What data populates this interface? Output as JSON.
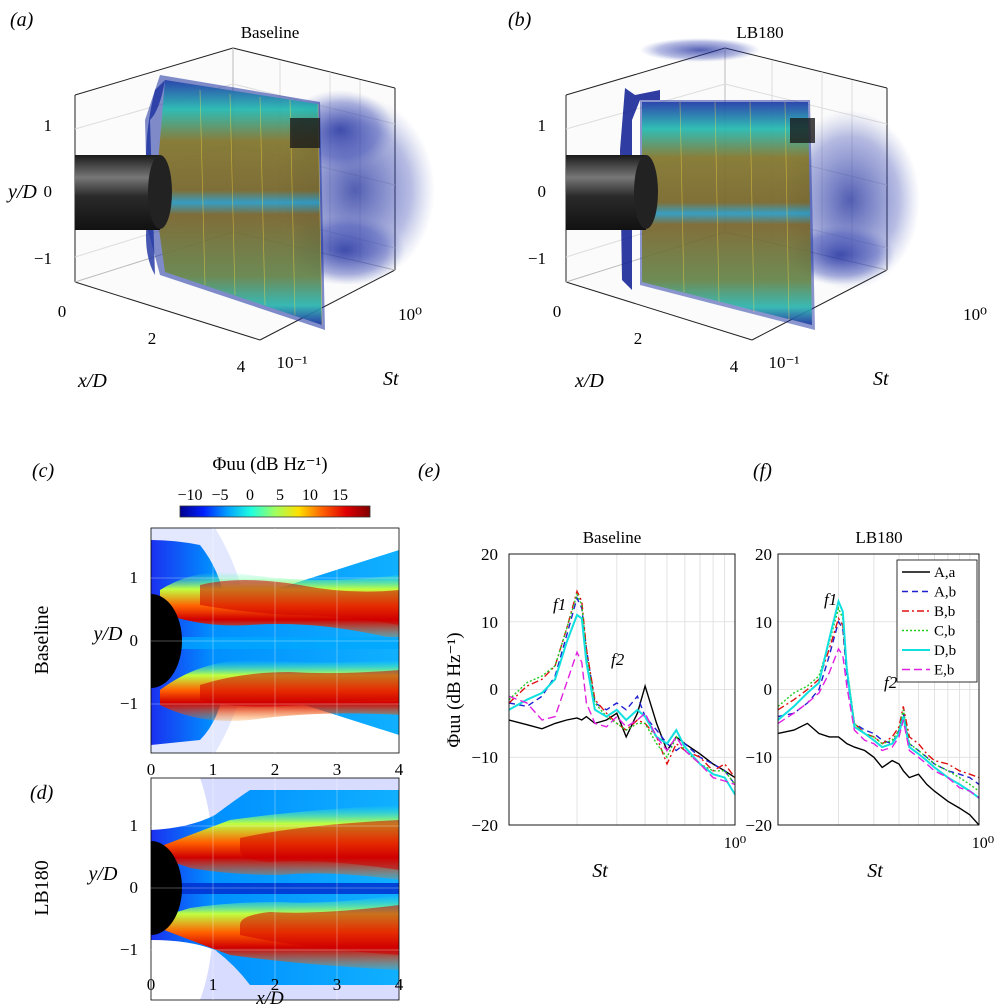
{
  "panels": {
    "a": {
      "label": "(a)",
      "title": "Baseline"
    },
    "b": {
      "label": "(b)",
      "title": "LB180"
    },
    "c": {
      "label": "(c)",
      "row_title": "Baseline"
    },
    "d": {
      "label": "(d)",
      "row_title": "LB180"
    },
    "e": {
      "label": "(e)",
      "title": "Baseline"
    },
    "f": {
      "label": "(f)",
      "title": "LB180"
    }
  },
  "axes3d": {
    "ylabel": "y/D",
    "xlabel": "x/D",
    "zlabel": "St",
    "yticks": [
      "1",
      "0",
      "−1"
    ],
    "xticks": [
      "0",
      "2",
      "4"
    ],
    "zticks": [
      "10⁻¹",
      "10⁰"
    ]
  },
  "colorbar": {
    "label": "Φuu (dB Hz⁻¹)",
    "ticks": [
      "−10",
      "−5",
      "0",
      "5",
      "10",
      "15"
    ],
    "range": [
      -10,
      15
    ],
    "colors": [
      "#00008f",
      "#0020ff",
      "#00a0ff",
      "#20ffdf",
      "#9fff60",
      "#ffdf00",
      "#ff6000",
      "#df0000",
      "#800000"
    ]
  },
  "contour": {
    "xlabel": "x/D",
    "ylabel": "y/D",
    "xticks": [
      "0",
      "1",
      "2",
      "3",
      "4"
    ],
    "yticks": [
      "1",
      "0",
      "−1"
    ]
  },
  "spectra": {
    "xlabel": "St",
    "ylabel": "Φuu (dB Hz⁻¹)",
    "yticks": [
      "20",
      "10",
      "0",
      "−10",
      "−20"
    ],
    "xtick": "10⁰",
    "f1": "f1",
    "f2": "f2"
  },
  "legend": [
    {
      "name": "A,a",
      "color": "#000000",
      "dash": ""
    },
    {
      "name": "A,b",
      "color": "#1f1fd0",
      "dash": "6,4"
    },
    {
      "name": "B,b",
      "color": "#e01010",
      "dash": "7,3,2,3"
    },
    {
      "name": "C,b",
      "color": "#20cc20",
      "dash": "2,2"
    },
    {
      "name": "D,b",
      "color": "#10e0e0",
      "dash": ""
    },
    {
      "name": "E,b",
      "color": "#e020e0",
      "dash": "8,4"
    }
  ],
  "chart_data": [
    {
      "type": "line",
      "panel": "e",
      "title": "Baseline",
      "xlabel": "St",
      "ylabel": "Φuu (dB Hz⁻¹)",
      "xscale": "log",
      "xlim": [
        0.1,
        1.0
      ],
      "ylim": [
        -20,
        20
      ],
      "x": [
        0.1,
        0.12,
        0.14,
        0.16,
        0.18,
        0.2,
        0.21,
        0.22,
        0.24,
        0.27,
        0.3,
        0.33,
        0.37,
        0.4,
        0.45,
        0.5,
        0.55,
        0.6,
        0.7,
        0.8,
        0.9,
        1.0
      ],
      "series": [
        {
          "name": "A,a",
          "values": [
            -4.5,
            -5.2,
            -5.8,
            -5.0,
            -4.5,
            -4.2,
            -4.5,
            -4.0,
            -5.0,
            -4.5,
            -3.5,
            -7.0,
            -3.5,
            0.5,
            -5.0,
            -9.0,
            -7.0,
            -8.0,
            -9.5,
            -11.0,
            -12.0,
            -13.0
          ]
        },
        {
          "name": "A,b",
          "values": [
            -2.0,
            -2.5,
            -1.0,
            2.0,
            8.0,
            13.5,
            12.0,
            6.0,
            -2.0,
            -3.0,
            -2.0,
            -3.0,
            -1.0,
            -4.0,
            -6.0,
            -8.0,
            -9.0,
            -8.0,
            -10.0,
            -11.0,
            -12.0,
            -14.0
          ]
        },
        {
          "name": "B,b",
          "values": [
            -2.0,
            0.5,
            1.5,
            3.5,
            9.0,
            14.5,
            13.0,
            6.0,
            -1.5,
            -3.5,
            -5.0,
            -6.0,
            -4.5,
            -5.0,
            -7.0,
            -11.0,
            -8.0,
            -9.0,
            -10.0,
            -12.0,
            -11.0,
            -13.0
          ]
        },
        {
          "name": "C,b",
          "values": [
            -1.5,
            1.0,
            2.0,
            3.5,
            9.0,
            14.0,
            12.5,
            5.0,
            -2.0,
            -4.0,
            -5.0,
            -6.0,
            -5.0,
            -5.0,
            -8.0,
            -10.0,
            -7.0,
            -9.0,
            -11.0,
            -12.0,
            -12.0,
            -14.0
          ]
        },
        {
          "name": "D,b",
          "values": [
            -3.0,
            -1.5,
            -0.5,
            1.5,
            7.0,
            11.0,
            10.5,
            4.0,
            -3.0,
            -4.0,
            -3.0,
            -4.5,
            -3.0,
            -4.0,
            -7.0,
            -8.0,
            -6.0,
            -8.5,
            -11.0,
            -12.5,
            -13.0,
            -15.5
          ]
        },
        {
          "name": "E,b",
          "values": [
            -1.0,
            -2.0,
            -4.5,
            -4.0,
            1.0,
            5.5,
            4.0,
            -2.0,
            -5.0,
            -5.5,
            -4.0,
            -5.5,
            -4.5,
            -3.5,
            -7.0,
            -9.0,
            -7.0,
            -9.0,
            -11.0,
            -13.0,
            -13.5,
            -14.0
          ]
        }
      ]
    },
    {
      "type": "line",
      "panel": "f",
      "title": "LB180",
      "xlabel": "St",
      "ylabel": "",
      "xscale": "log",
      "xlim": [
        0.1,
        1.0
      ],
      "ylim": [
        -20,
        20
      ],
      "x": [
        0.1,
        0.12,
        0.14,
        0.16,
        0.18,
        0.2,
        0.21,
        0.22,
        0.24,
        0.27,
        0.3,
        0.33,
        0.37,
        0.4,
        0.42,
        0.45,
        0.5,
        0.55,
        0.6,
        0.7,
        0.8,
        0.9,
        1.0
      ],
      "series": [
        {
          "name": "A,a",
          "values": [
            -6.5,
            -6.0,
            -5.0,
            -6.5,
            -7.0,
            -7.0,
            -7.5,
            -8.0,
            -8.5,
            -9.0,
            -10.0,
            -11.5,
            -10.5,
            -11.0,
            -12.0,
            -13.0,
            -12.5,
            -14.0,
            -15.0,
            -16.5,
            -17.5,
            -18.5,
            -20.0
          ]
        },
        {
          "name": "A,b",
          "values": [
            -4.0,
            -3.5,
            -2.0,
            0.0,
            5.0,
            10.0,
            9.0,
            2.0,
            -5.0,
            -6.0,
            -6.5,
            -7.5,
            -8.0,
            -6.0,
            -3.5,
            -8.0,
            -9.0,
            -10.0,
            -11.0,
            -12.0,
            -12.5,
            -13.0,
            -14.0
          ]
        },
        {
          "name": "B,b",
          "values": [
            -3.0,
            -1.5,
            0.0,
            1.5,
            6.0,
            10.5,
            9.5,
            3.0,
            -5.0,
            -6.5,
            -7.0,
            -8.0,
            -7.0,
            -5.5,
            -2.5,
            -7.0,
            -8.0,
            -9.5,
            -10.5,
            -11.0,
            -12.0,
            -12.5,
            -13.0
          ]
        },
        {
          "name": "C,b",
          "values": [
            -2.5,
            -0.5,
            0.5,
            2.0,
            7.0,
            12.0,
            10.5,
            3.5,
            -5.0,
            -6.5,
            -7.0,
            -8.0,
            -7.5,
            -6.0,
            -3.0,
            -8.0,
            -9.0,
            -10.0,
            -11.0,
            -12.0,
            -13.0,
            -14.0,
            -15.0
          ]
        },
        {
          "name": "D,b",
          "values": [
            -4.5,
            -2.5,
            -0.5,
            1.0,
            7.5,
            13.0,
            11.5,
            3.0,
            -5.5,
            -6.5,
            -7.5,
            -8.5,
            -8.0,
            -6.5,
            -4.0,
            -8.5,
            -9.5,
            -10.5,
            -11.5,
            -13.0,
            -14.0,
            -15.0,
            -16.0
          ]
        },
        {
          "name": "E,b",
          "values": [
            -5.0,
            -3.5,
            -2.0,
            -0.5,
            2.5,
            6.0,
            5.0,
            0.5,
            -6.0,
            -7.5,
            -8.0,
            -9.0,
            -8.5,
            -7.0,
            -4.5,
            -9.0,
            -10.0,
            -11.0,
            -12.0,
            -13.0,
            -14.5,
            -15.0,
            -16.0
          ]
        }
      ]
    }
  ]
}
